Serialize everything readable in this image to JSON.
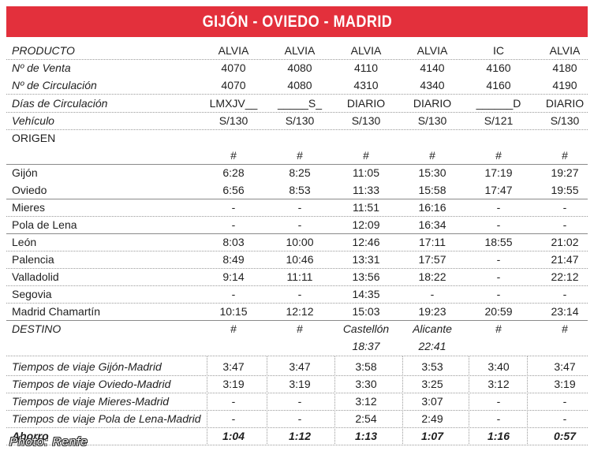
{
  "title": "GIJÓN - OVIEDO - MADRID",
  "header_rows": [
    {
      "label": "PRODUCTO",
      "values": [
        "ALVIA",
        "ALVIA",
        "ALVIA",
        "ALVIA",
        "IC",
        "ALVIA"
      ]
    },
    {
      "label": "Nº de Venta",
      "values": [
        "4070",
        "4080",
        "4110",
        "4140",
        "4160",
        "4180"
      ]
    },
    {
      "label": "Nº de Circulación",
      "values": [
        "4070",
        "4080",
        "4310",
        "4340",
        "4160",
        "4190"
      ]
    },
    {
      "label": "Días de Circulación",
      "values": [
        "LMXJV__",
        "_____S_",
        "DIARIO",
        "DIARIO",
        "______D",
        "DIARIO"
      ]
    },
    {
      "label": "Vehículo",
      "values": [
        "S/130",
        "S/130",
        "S/130",
        "S/130",
        "S/121",
        "S/130"
      ]
    }
  ],
  "origin": {
    "label": "ORIGEN",
    "values": [
      "#",
      "#",
      "#",
      "#",
      "#",
      "#"
    ]
  },
  "stations": [
    {
      "name": "Gijón",
      "times": [
        "6:28",
        "8:25",
        "11:05",
        "15:30",
        "17:19",
        "19:27"
      ]
    },
    {
      "name": "Oviedo",
      "times": [
        "6:56",
        "8:53",
        "11:33",
        "15:58",
        "17:47",
        "19:55"
      ]
    },
    {
      "name": "Mieres",
      "times": [
        "-",
        "-",
        "11:51",
        "16:16",
        "-",
        "-"
      ]
    },
    {
      "name": "Pola de Lena",
      "times": [
        "-",
        "-",
        "12:09",
        "16:34",
        "-",
        "-"
      ]
    },
    {
      "name": "León",
      "times": [
        "8:03",
        "10:00",
        "12:46",
        "17:11",
        "18:55",
        "21:02"
      ]
    },
    {
      "name": "Palencia",
      "times": [
        "8:49",
        "10:46",
        "13:31",
        "17:57",
        "-",
        "21:47"
      ]
    },
    {
      "name": "Valladolid",
      "times": [
        "9:14",
        "11:11",
        "13:56",
        "18:22",
        "-",
        "22:12"
      ]
    },
    {
      "name": "Segovia",
      "times": [
        "-",
        "-",
        "14:35",
        "-",
        "-",
        "-"
      ]
    },
    {
      "name": "Madrid Chamartín",
      "times": [
        "10:15",
        "12:12",
        "15:03",
        "19:23",
        "20:59",
        "23:14"
      ]
    }
  ],
  "destination": {
    "label": "DESTINO",
    "values": [
      "#",
      "#",
      "Castellón",
      "Alicante",
      "#",
      "#"
    ],
    "extra": [
      "",
      "",
      "18:37",
      "22:41",
      "",
      ""
    ]
  },
  "travel_times": [
    {
      "label": "Tiempos de viaje Gijón-Madrid",
      "values": [
        "3:47",
        "3:47",
        "3:58",
        "3:53",
        "3:40",
        "3:47"
      ]
    },
    {
      "label": "Tiempos de viaje Oviedo-Madrid",
      "values": [
        "3:19",
        "3:19",
        "3:30",
        "3:25",
        "3:12",
        "3:19"
      ]
    },
    {
      "label": "Tiempos de viaje Mieres-Madrid",
      "values": [
        "-",
        "-",
        "3:12",
        "3:07",
        "-",
        "-"
      ]
    },
    {
      "label": "Tiempos de viaje Pola de Lena-Madrid",
      "values": [
        "-",
        "-",
        "2:54",
        "2:49",
        "-",
        "-"
      ]
    }
  ],
  "savings": {
    "label": "Ahorro",
    "values": [
      "1:04",
      "1:12",
      "1:13",
      "1:07",
      "1:16",
      "0:57"
    ]
  },
  "photo_credit": "Photo: Renfe",
  "colors": {
    "title_bg": "#e3303c",
    "title_text": "#ffffff",
    "rule": "#9a9a9a"
  }
}
